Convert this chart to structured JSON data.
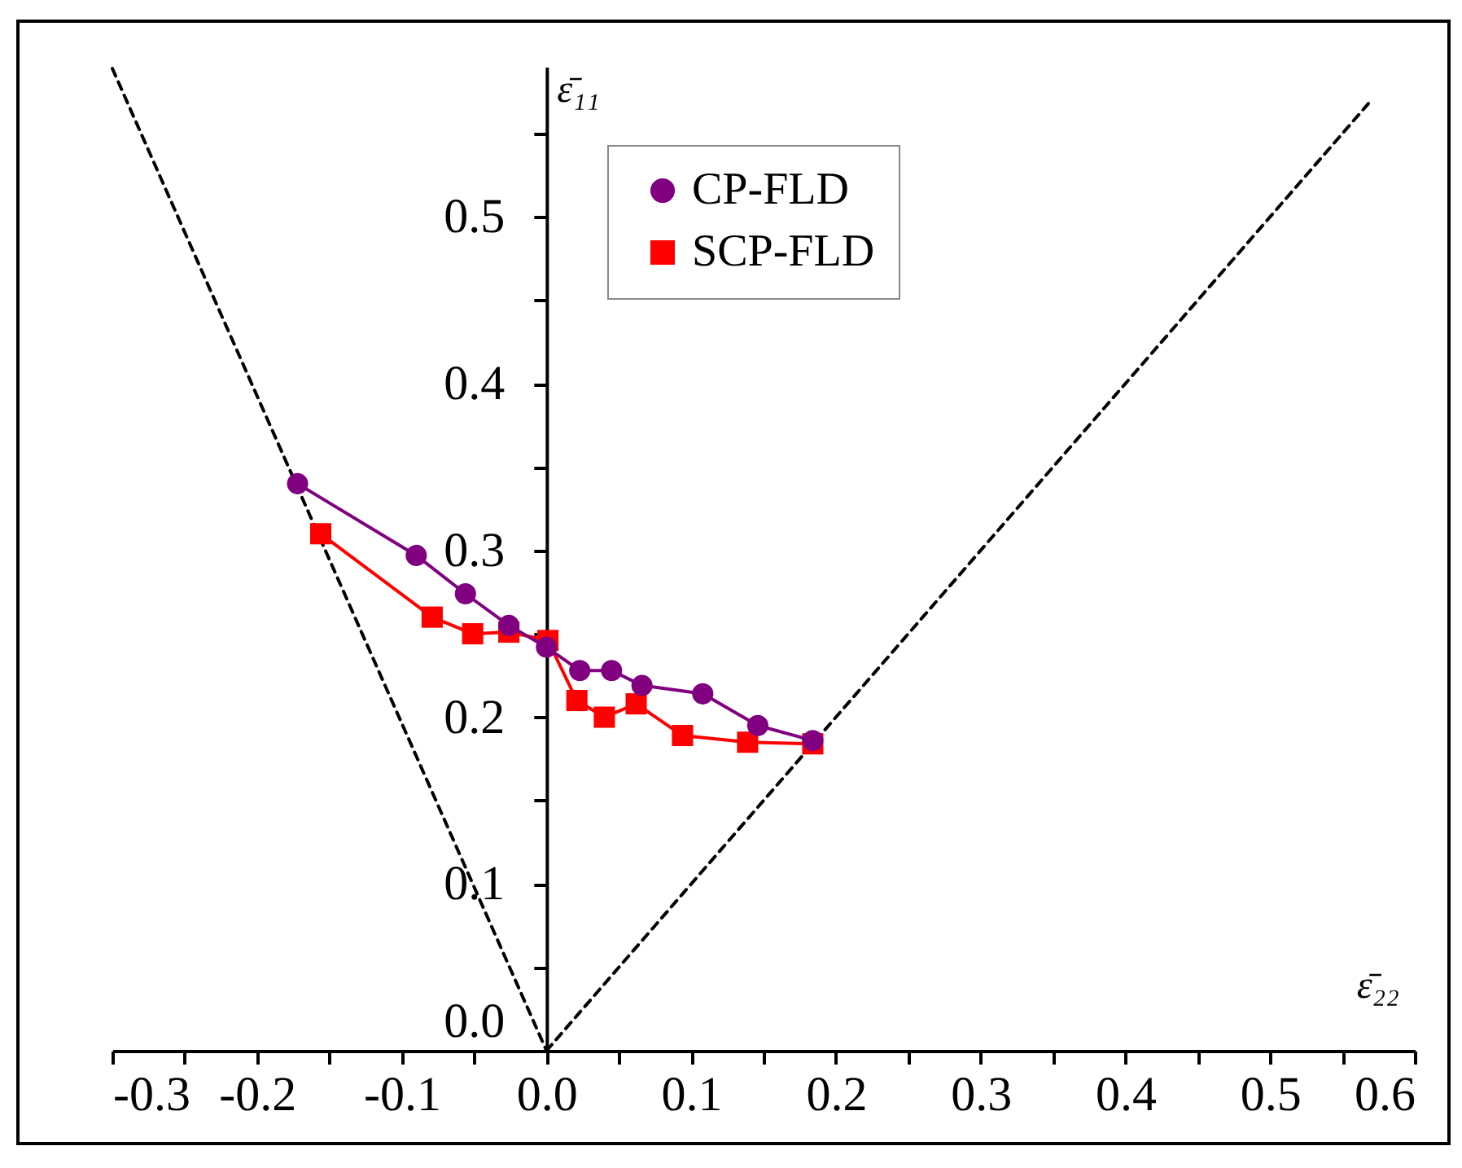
{
  "chart_data": {
    "type": "line",
    "xlabel": "ε̄₂₂",
    "ylabel": "ε̄₁₁",
    "xlim": [
      -0.3,
      0.6
    ],
    "ylim": [
      0,
      0.59
    ],
    "xticks": [
      -0.3,
      {
        "value": -0.25,
        "label": null
      },
      -0.2,
      {
        "value": -0.15,
        "label": null
      },
      -0.1,
      {
        "value": -0.05,
        "label": null
      },
      {
        "value": 0,
        "label": "0.0"
      },
      {
        "value": 0.05,
        "label": null
      },
      0.1,
      {
        "value": 0.15,
        "label": null
      },
      0.2,
      {
        "value": 0.25,
        "label": null
      },
      0.3,
      {
        "value": 0.35,
        "label": null
      },
      0.4,
      {
        "value": 0.45,
        "label": null
      },
      0.5,
      {
        "value": 0.55,
        "label": null
      },
      0.6
    ],
    "yticks": [
      {
        "value": 0,
        "label": "0.0"
      },
      {
        "value": 0.05,
        "label": null
      },
      0.1,
      {
        "value": 0.15,
        "label": null
      },
      0.2,
      {
        "value": 0.25,
        "label": null
      },
      0.3,
      {
        "value": 0.35,
        "label": null
      },
      0.4,
      {
        "value": 0.45,
        "label": null
      },
      0.5,
      {
        "value": 0.55,
        "label": null
      }
    ],
    "legend": "top",
    "grid": false,
    "series": [
      {
        "name": "CP-FLD",
        "color": "#800080",
        "marker": "circle",
        "x": [
          -0.172,
          -0.09,
          -0.056,
          -0.026,
          0.0,
          0.023,
          0.045,
          0.066,
          0.108,
          0.146,
          0.184
        ],
        "values": [
          0.34,
          0.297,
          0.274,
          0.255,
          0.242,
          0.228,
          0.228,
          0.219,
          0.214,
          0.195,
          0.186
        ]
      },
      {
        "name": "SCP-FLD",
        "color": "#ff0000",
        "marker": "square",
        "x": [
          -0.156,
          -0.079,
          -0.051,
          -0.026,
          0.001,
          0.021,
          0.04,
          0.062,
          0.094,
          0.139,
          0.184
        ],
        "values": [
          0.31,
          0.26,
          0.25,
          0.251,
          0.246,
          0.21,
          0.2,
          0.208,
          0.189,
          0.185,
          0.184
        ]
      },
      {
        "color": "#000000",
        "marker": "none",
        "line_style": "dashed",
        "x": [
          -0.3,
          0.0
        ],
        "values": [
          0.589,
          0.0
        ]
      },
      {
        "color": "#000000",
        "marker": "none",
        "line_style": "dashed",
        "x": [
          0.0,
          0.57
        ],
        "values": [
          0.0,
          0.57
        ]
      }
    ]
  }
}
